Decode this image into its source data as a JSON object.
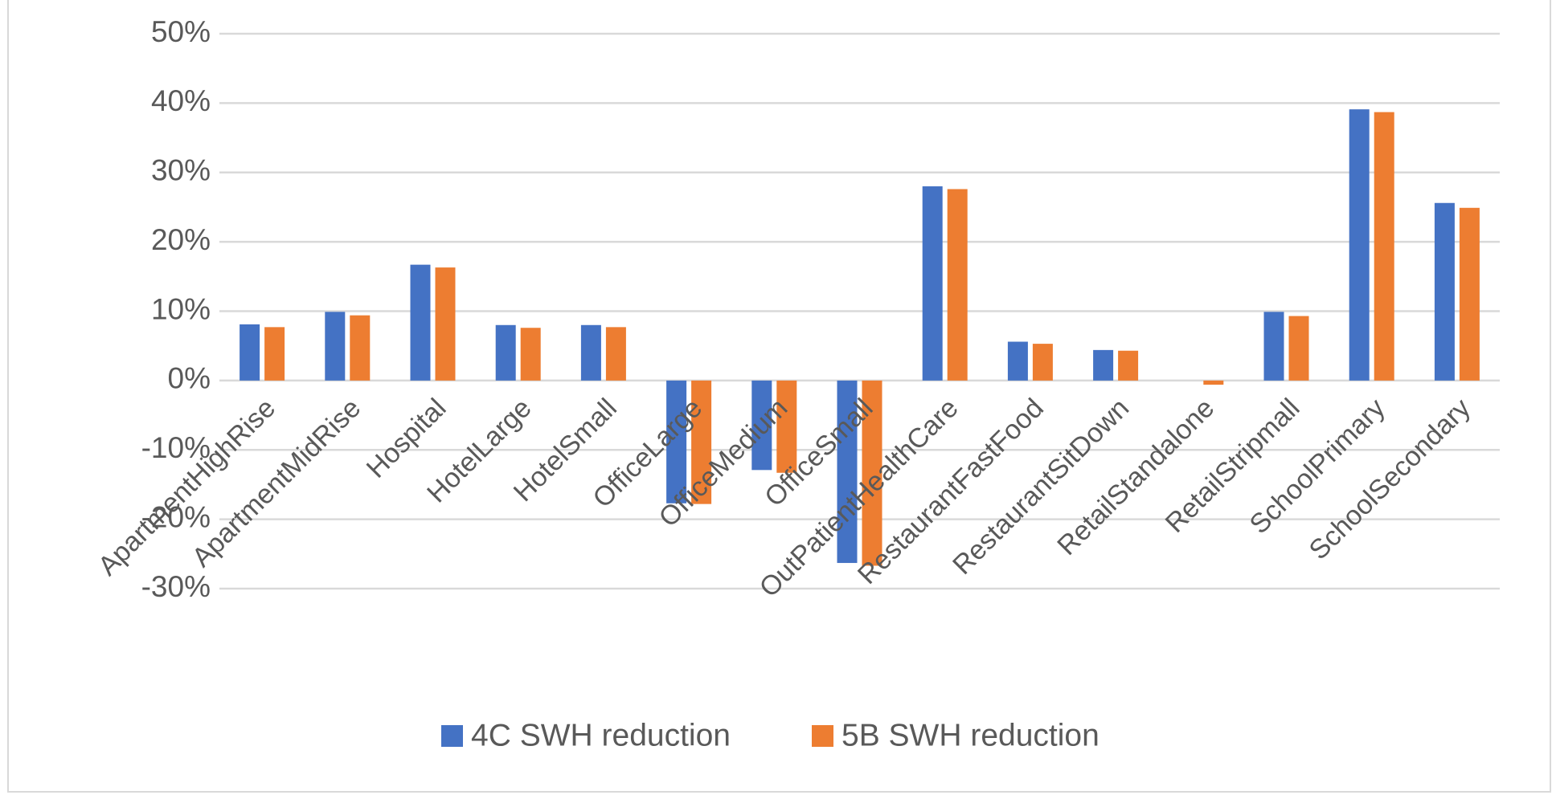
{
  "chart_data": {
    "type": "bar",
    "categories": [
      "ApartmentHighRise",
      "ApartmentMidRise",
      "Hospital",
      "HotelLarge",
      "HotelSmall",
      "OfficeLarge",
      "OfficeMedium",
      "OfficeSmall",
      "OutPatientHealthCare",
      "RestaurantFastFood",
      "RestaurantSitDown",
      "RetailStandalone",
      "RetailStripmall",
      "SchoolPrimary",
      "SchoolSecondary"
    ],
    "series": [
      {
        "name": "4C SWH reduction",
        "color": "#4472c4",
        "values": [
          8.1,
          9.9,
          16.7,
          8.0,
          8.0,
          -17.7,
          -12.9,
          -26.3,
          28.0,
          5.6,
          4.4,
          0,
          9.9,
          39.1,
          25.6
        ]
      },
      {
        "name": "5B SWH reduction",
        "color": "#ed7d31",
        "values": [
          7.7,
          9.4,
          16.3,
          7.6,
          7.7,
          -17.8,
          -13.3,
          -26.7,
          27.6,
          5.3,
          4.3,
          -0.6,
          9.3,
          38.7,
          24.9
        ]
      }
    ],
    "ylim": [
      -30,
      50
    ],
    "yticks": [
      {
        "value": -30,
        "label": "-30%"
      },
      {
        "value": -20,
        "label": "-20%"
      },
      {
        "value": -10,
        "label": "-10%"
      },
      {
        "value": 0,
        "label": "0%"
      },
      {
        "value": 10,
        "label": "10%"
      },
      {
        "value": 20,
        "label": "20%"
      },
      {
        "value": 30,
        "label": "30%"
      },
      {
        "value": 40,
        "label": "40%"
      },
      {
        "value": 50,
        "label": "50%"
      }
    ],
    "grid": true,
    "legend": "bottom"
  }
}
